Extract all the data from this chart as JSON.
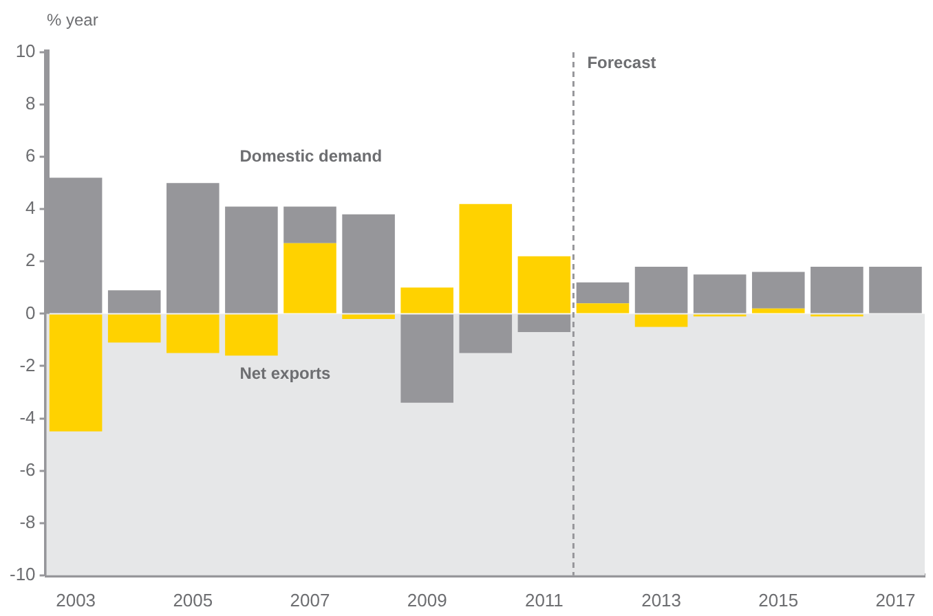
{
  "chart_data": {
    "type": "bar",
    "ylabel": "% year",
    "x": [
      2003,
      2004,
      2005,
      2006,
      2007,
      2008,
      2009,
      2010,
      2011,
      2012,
      2013,
      2014,
      2015,
      2016,
      2017
    ],
    "stacked": true,
    "series": [
      {
        "name": "Net exports",
        "color": "#ffd200",
        "values": [
          -4.5,
          -1.1,
          -1.5,
          -1.6,
          2.7,
          -0.2,
          1.0,
          4.2,
          2.2,
          0.4,
          -0.5,
          -0.1,
          0.2,
          -0.1,
          0.0
        ]
      },
      {
        "name": "Domestic demand",
        "color": "#96969a",
        "values": [
          5.2,
          0.9,
          5.0,
          4.1,
          1.4,
          3.8,
          -3.4,
          -1.5,
          -0.7,
          0.8,
          1.8,
          1.5,
          1.4,
          1.8,
          1.8
        ]
      }
    ],
    "xlim": [
      2002.5,
      2017.5
    ],
    "xticks": [
      2003,
      2005,
      2007,
      2009,
      2011,
      2013,
      2015,
      2017
    ],
    "ylim": [
      -10,
      10
    ],
    "yticks": [
      -10,
      -8,
      -6,
      -4,
      -2,
      0,
      2,
      4,
      6,
      8,
      10
    ],
    "ref_lines": [
      {
        "axis": "x",
        "value": 2011.5,
        "label": "Forecast",
        "color": "#96969a",
        "line_style": "dashed"
      }
    ],
    "bands": [
      {
        "axis": "y",
        "from": -10,
        "to": 0,
        "color": "#e6e7e8"
      }
    ],
    "grid": false,
    "legend": false
  }
}
